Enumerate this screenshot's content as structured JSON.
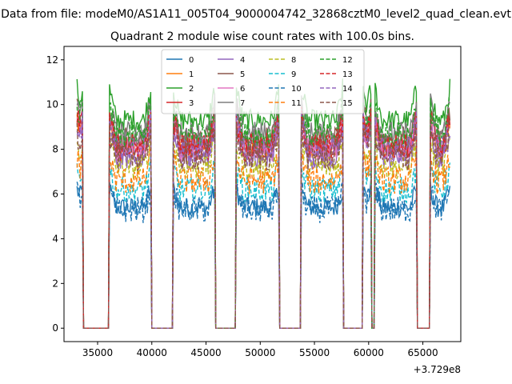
{
  "figure": {
    "suptitle": "Data from file: modeM0/AS1A11_005T04_9000004742_32868cztM0_level2_quad_clean.evt"
  },
  "chart_data": {
    "type": "line",
    "title": "Quadrant 2 module wise count rates with 100.0s bins.",
    "xlabel": "",
    "ylabel": "",
    "x_offset_label": "+3.729e8",
    "x_ticks": [
      35000,
      40000,
      45000,
      50000,
      55000,
      60000,
      65000
    ],
    "y_ticks": [
      0,
      2,
      4,
      6,
      8,
      10,
      12
    ],
    "xlim": [
      31900,
      68500
    ],
    "ylim": [
      -0.6,
      12.6
    ],
    "legend_position": "upper center",
    "segments": [
      [
        33100,
        33600
      ],
      [
        36100,
        39900
      ],
      [
        42000,
        45800
      ],
      [
        47800,
        51700
      ],
      [
        53800,
        57600
      ],
      [
        59500,
        60200
      ],
      [
        60600,
        64400
      ],
      [
        65700,
        67500
      ]
    ],
    "series": [
      {
        "name": "0",
        "color": "#1f77b4",
        "dash": "solid",
        "level": 5.4
      },
      {
        "name": "1",
        "color": "#ff7f0e",
        "dash": "solid",
        "level": 8.0
      },
      {
        "name": "2",
        "color": "#2ca02c",
        "dash": "solid",
        "level": 9.3
      },
      {
        "name": "3",
        "color": "#d62728",
        "dash": "solid",
        "level": 8.2
      },
      {
        "name": "4",
        "color": "#9467bd",
        "dash": "solid",
        "level": 7.6
      },
      {
        "name": "5",
        "color": "#8c564b",
        "dash": "solid",
        "level": 8.5
      },
      {
        "name": "6",
        "color": "#e377c2",
        "dash": "solid",
        "level": 8.0
      },
      {
        "name": "7",
        "color": "#7f7f7f",
        "dash": "solid",
        "level": 8.7
      },
      {
        "name": "8",
        "color": "#bcbd22",
        "dash": "dashed",
        "level": 7.2
      },
      {
        "name": "9",
        "color": "#17becf",
        "dash": "dashed",
        "level": 6.2
      },
      {
        "name": "10",
        "color": "#1f77b4",
        "dash": "dashed",
        "level": 5.3
      },
      {
        "name": "11",
        "color": "#ff7f0e",
        "dash": "dashed",
        "level": 6.6
      },
      {
        "name": "12",
        "color": "#2ca02c",
        "dash": "dashed",
        "level": 8.6
      },
      {
        "name": "13",
        "color": "#d62728",
        "dash": "dashed",
        "level": 8.1
      },
      {
        "name": "14",
        "color": "#9467bd",
        "dash": "dashed",
        "level": 7.9
      },
      {
        "name": "15",
        "color": "#8c564b",
        "dash": "dashed",
        "level": 7.7
      }
    ]
  }
}
